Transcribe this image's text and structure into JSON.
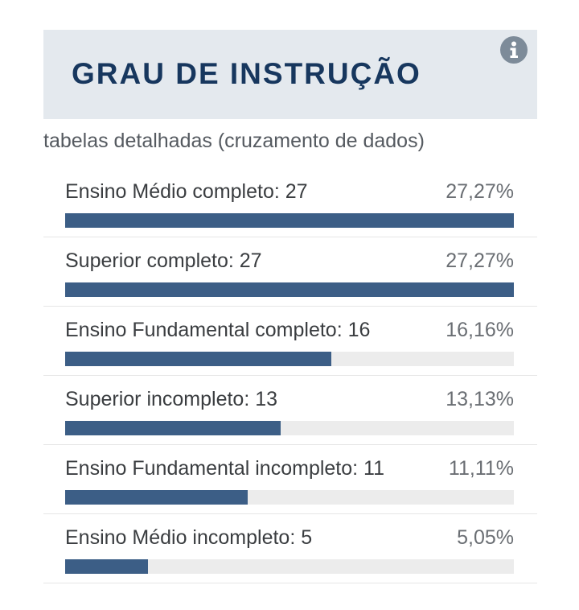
{
  "header": {
    "title": "GRAU DE INSTRUÇÃO",
    "info_icon": "info-icon"
  },
  "subtitle": "tabelas detalhadas (cruzamento de dados)",
  "colors": {
    "header_bg": "#e4e9ee",
    "title": "#17375e",
    "bar": "#3c5e86",
    "track": "#ececec"
  },
  "rows": [
    {
      "label": "Ensino Médio completo: 27",
      "percent": "27,27%",
      "fill": 1.0
    },
    {
      "label": "Superior completo: 27",
      "percent": "27,27%",
      "fill": 1.0
    },
    {
      "label": "Ensino Fundamental completo: 16",
      "percent": "16,16%",
      "fill": 0.593
    },
    {
      "label": "Superior incompleto: 13",
      "percent": "13,13%",
      "fill": 0.481
    },
    {
      "label": "Ensino Fundamental incompleto: 11",
      "percent": "11,11%",
      "fill": 0.407
    },
    {
      "label": "Ensino Médio incompleto: 5",
      "percent": "5,05%",
      "fill": 0.185
    }
  ]
}
